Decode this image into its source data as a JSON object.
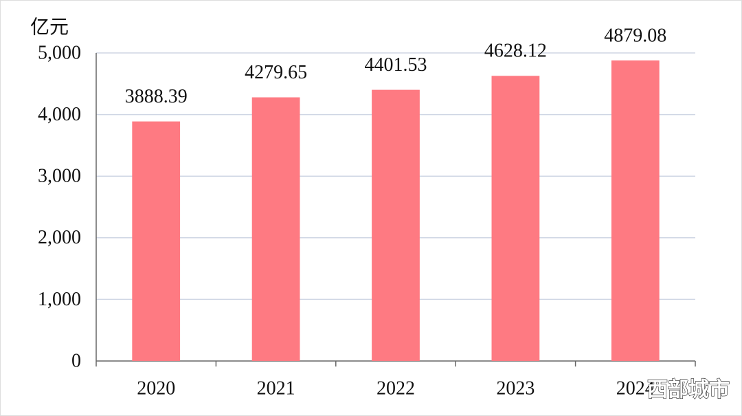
{
  "chart_data": {
    "type": "bar",
    "y_label": "亿元",
    "categories": [
      "2020",
      "2021",
      "2022",
      "2023",
      "2024"
    ],
    "values": [
      3888.39,
      4279.65,
      4401.53,
      4628.12,
      4879.08
    ],
    "color": "#fe7a82",
    "ylim": [
      0,
      5000
    ],
    "yticks": [
      0,
      {
        "value": 1000,
        "label": "1,000"
      },
      {
        "value": 2000,
        "label": "2,000"
      },
      {
        "value": 3000,
        "label": "3,000"
      },
      {
        "value": 4000,
        "label": "4,000"
      },
      {
        "value": 5000,
        "label": "5,000"
      }
    ],
    "grid": true,
    "watermark": "西部城市"
  }
}
